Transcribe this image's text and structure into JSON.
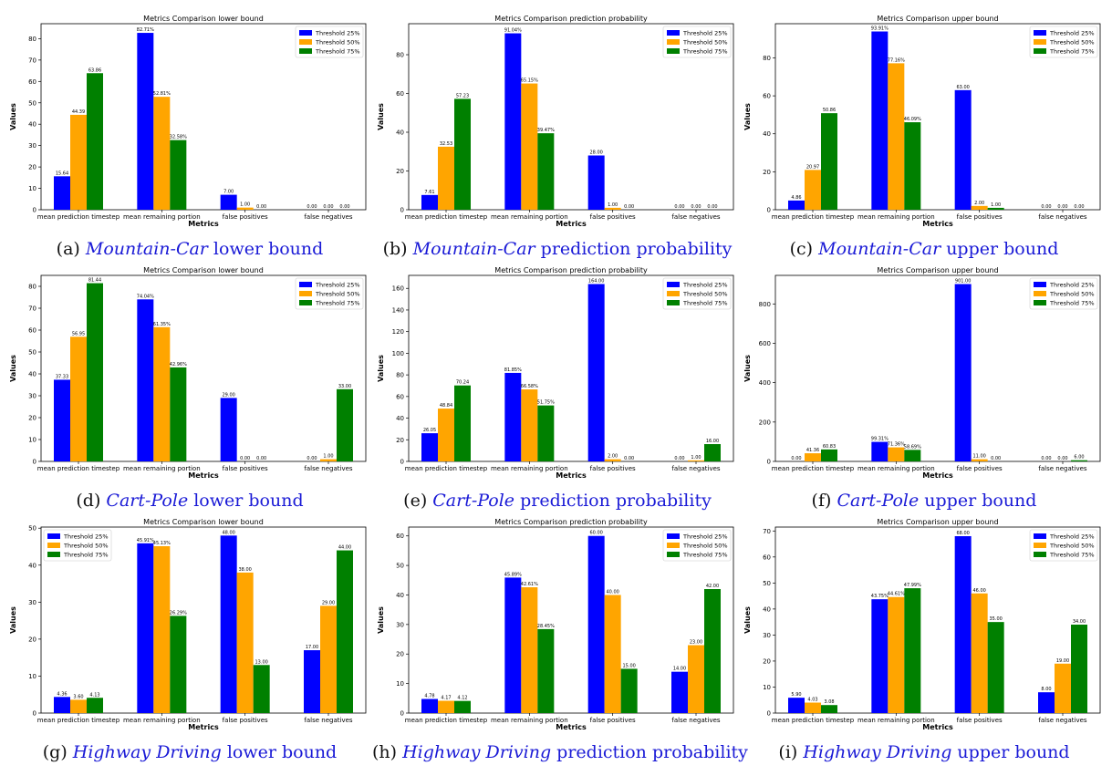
{
  "colors": {
    "s25": "#0000ff",
    "s50": "#ffa500",
    "s75": "#008000"
  },
  "legend_labels": [
    "Threshold 25%",
    "Threshold 50%",
    "Threshold 75%"
  ],
  "categories": [
    "mean prediction timestep",
    "mean remaining portion",
    "false positives",
    "false negatives"
  ],
  "xlabel": "Metrics",
  "ylabel": "Values",
  "chart_data": [
    {
      "type": "bar",
      "title": "Metrics Comparison lower bound",
      "caption": {
        "label": "(a)",
        "domain": "Mountain-Car",
        "rest": "lower bound"
      },
      "ylim": [
        0,
        87
      ],
      "yticks": [
        0,
        10,
        20,
        30,
        40,
        50,
        60,
        70,
        80
      ],
      "legend": "top-right",
      "series": [
        {
          "name": "Threshold 25%",
          "values": [
            15.64,
            82.71,
            7.0,
            0.0
          ],
          "labels": [
            "15.64",
            "82.71%",
            "7.00",
            "0.00"
          ]
        },
        {
          "name": "Threshold 50%",
          "values": [
            44.39,
            52.81,
            1.0,
            0.0
          ],
          "labels": [
            "44.39",
            "52.81%",
            "1.00",
            "0.00"
          ]
        },
        {
          "name": "Threshold 75%",
          "values": [
            63.86,
            32.58,
            0.0,
            0.0
          ],
          "labels": [
            "63.86",
            "32.58%",
            "0.00",
            "0.00"
          ]
        }
      ]
    },
    {
      "type": "bar",
      "title": "Metrics Comparison prediction probability",
      "caption": {
        "label": "(b)",
        "domain": "Mountain-Car",
        "rest": "prediction probability"
      },
      "ylim": [
        0,
        96
      ],
      "yticks": [
        0,
        20,
        40,
        60,
        80
      ],
      "legend": "top-right",
      "series": [
        {
          "name": "Threshold 25%",
          "values": [
            7.61,
            91.04,
            28.0,
            0.0
          ],
          "labels": [
            "7.61",
            "91.04%",
            "28.00",
            "0.00"
          ]
        },
        {
          "name": "Threshold 50%",
          "values": [
            32.53,
            65.15,
            1.0,
            0.0
          ],
          "labels": [
            "32.53",
            "65.15%",
            "1.00",
            "0.00"
          ]
        },
        {
          "name": "Threshold 75%",
          "values": [
            57.23,
            39.47,
            0.0,
            0.0
          ],
          "labels": [
            "57.23",
            "39.47%",
            "0.00",
            "0.00"
          ]
        }
      ]
    },
    {
      "type": "bar",
      "title": "Metrics Comparison upper bound",
      "caption": {
        "label": "(c)",
        "domain": "Mountain-Car",
        "rest": "upper bound"
      },
      "ylim": [
        0,
        98
      ],
      "yticks": [
        0,
        20,
        40,
        60,
        80
      ],
      "legend": "top-right",
      "series": [
        {
          "name": "Threshold 25%",
          "values": [
            4.86,
            93.91,
            63.0,
            0.0
          ],
          "labels": [
            "4.86",
            "93.91%",
            "63.00",
            "0.00"
          ]
        },
        {
          "name": "Threshold 50%",
          "values": [
            20.97,
            77.16,
            2.0,
            0.0
          ],
          "labels": [
            "20.97",
            "77.16%",
            "2.00",
            "0.00"
          ]
        },
        {
          "name": "Threshold 75%",
          "values": [
            50.86,
            46.09,
            1.0,
            0.0
          ],
          "labels": [
            "50.86",
            "46.09%",
            "1.00",
            "0.00"
          ]
        }
      ]
    },
    {
      "type": "bar",
      "title": "Metrics Comparison lower bound",
      "caption": {
        "label": "(d)",
        "domain": "Cart-Pole",
        "rest": "lower bound"
      },
      "ylim": [
        0,
        85
      ],
      "yticks": [
        0,
        10,
        20,
        30,
        40,
        50,
        60,
        70,
        80
      ],
      "legend": "top-right",
      "series": [
        {
          "name": "Threshold 25%",
          "values": [
            37.33,
            74.04,
            29.0,
            0.0
          ],
          "labels": [
            "37.33",
            "74.04%",
            "29.00",
            "0.00"
          ]
        },
        {
          "name": "Threshold 50%",
          "values": [
            56.95,
            61.35,
            0.0,
            1.0
          ],
          "labels": [
            "56.95",
            "61.35%",
            "0.00",
            "1.00"
          ]
        },
        {
          "name": "Threshold 75%",
          "values": [
            81.44,
            42.96,
            0.0,
            33.0
          ],
          "labels": [
            "81.44",
            "42.96%",
            "0.00",
            "33.00"
          ]
        }
      ]
    },
    {
      "type": "bar",
      "title": "Metrics Comparison prediction probability",
      "caption": {
        "label": "(e)",
        "domain": "Cart-Pole",
        "rest": "prediction probability"
      },
      "ylim": [
        0,
        172
      ],
      "yticks": [
        0,
        20,
        40,
        60,
        80,
        100,
        120,
        140,
        160
      ],
      "legend": "top-right",
      "series": [
        {
          "name": "Threshold 25%",
          "values": [
            26.05,
            81.85,
            164.0,
            0.0
          ],
          "labels": [
            "26.05",
            "81.85%",
            "164.00",
            "0.00"
          ]
        },
        {
          "name": "Threshold 50%",
          "values": [
            48.84,
            66.58,
            2.0,
            1.0
          ],
          "labels": [
            "48.84",
            "66.58%",
            "2.00",
            "1.00"
          ]
        },
        {
          "name": "Threshold 75%",
          "values": [
            70.24,
            51.75,
            0.0,
            16.0
          ],
          "labels": [
            "70.24",
            "51.75%",
            "0.00",
            "16.00"
          ]
        }
      ]
    },
    {
      "type": "bar",
      "title": "Metrics Comparison upper bound",
      "caption": {
        "label": "(f)",
        "domain": "Cart-Pole",
        "rest": "upper bound"
      },
      "ylim": [
        0,
        945
      ],
      "yticks": [
        0,
        200,
        400,
        600,
        800
      ],
      "legend": "top-right",
      "series": [
        {
          "name": "Threshold 25%",
          "values": [
            0.0,
            99.31,
            901.0,
            0.0
          ],
          "labels": [
            "0.00",
            "99.31%",
            "901.00",
            "0.00"
          ]
        },
        {
          "name": "Threshold 50%",
          "values": [
            41.36,
            71.36,
            11.0,
            0.0
          ],
          "labels": [
            "41.36",
            "71.36%",
            "11.00",
            "0.00"
          ]
        },
        {
          "name": "Threshold 75%",
          "values": [
            60.83,
            58.69,
            0.0,
            6.0
          ],
          "labels": [
            "60.83",
            "58.69%",
            "0.00",
            "6.00"
          ]
        }
      ]
    },
    {
      "type": "bar",
      "title": "Metrics Comparison lower bound",
      "caption": {
        "label": "(g)",
        "domain": "Highway Driving",
        "rest": "lower bound"
      },
      "ylim": [
        0,
        50.3
      ],
      "yticks": [
        0,
        10,
        20,
        30,
        40,
        50
      ],
      "legend": "top-left",
      "series": [
        {
          "name": "Threshold 25%",
          "values": [
            4.36,
            45.91,
            48.0,
            17.0
          ],
          "labels": [
            "4.36",
            "45.91%",
            "48.00",
            "17.00"
          ]
        },
        {
          "name": "Threshold 50%",
          "values": [
            3.6,
            45.13,
            38.0,
            29.0
          ],
          "labels": [
            "3.60",
            "45.13%",
            "38.00",
            "29.00"
          ]
        },
        {
          "name": "Threshold 75%",
          "values": [
            4.13,
            26.29,
            13.0,
            44.0
          ],
          "labels": [
            "4.13",
            "26.29%",
            "13.00",
            "44.00"
          ]
        }
      ]
    },
    {
      "type": "bar",
      "title": "Metrics Comparison prediction probability",
      "caption": {
        "label": "(h)",
        "domain": "Highway Driving",
        "rest": "prediction probability"
      },
      "ylim": [
        0,
        63
      ],
      "yticks": [
        0,
        10,
        20,
        30,
        40,
        50,
        60
      ],
      "legend": "top-right",
      "series": [
        {
          "name": "Threshold 25%",
          "values": [
            4.78,
            45.89,
            60.0,
            14.0
          ],
          "labels": [
            "4.78",
            "45.89%",
            "60.00",
            "14.00"
          ]
        },
        {
          "name": "Threshold 50%",
          "values": [
            4.17,
            42.61,
            40.0,
            23.0
          ],
          "labels": [
            "4.17",
            "42.61%",
            "40.00",
            "23.00"
          ]
        },
        {
          "name": "Threshold 75%",
          "values": [
            4.12,
            28.45,
            15.0,
            42.0
          ],
          "labels": [
            "4.12",
            "28.45%",
            "15.00",
            "42.00"
          ]
        }
      ]
    },
    {
      "type": "bar",
      "title": "Metrics Comparison upper bound",
      "caption": {
        "label": "(i)",
        "domain": "Highway Driving",
        "rest": "upper bound"
      },
      "ylim": [
        0,
        71.5
      ],
      "yticks": [
        0,
        10,
        20,
        30,
        40,
        50,
        60,
        70
      ],
      "legend": "top-right",
      "series": [
        {
          "name": "Threshold 25%",
          "values": [
            5.9,
            43.75,
            68.0,
            8.0
          ],
          "labels": [
            "5.90",
            "43.75%",
            "68.00",
            "8.00"
          ]
        },
        {
          "name": "Threshold 50%",
          "values": [
            4.03,
            44.61,
            46.0,
            19.0
          ],
          "labels": [
            "4.03",
            "44.61%",
            "46.00",
            "19.00"
          ]
        },
        {
          "name": "Threshold 75%",
          "values": [
            3.08,
            47.99,
            35.0,
            34.0
          ],
          "labels": [
            "3.08",
            "47.99%",
            "35.00",
            "34.00"
          ]
        }
      ]
    }
  ]
}
